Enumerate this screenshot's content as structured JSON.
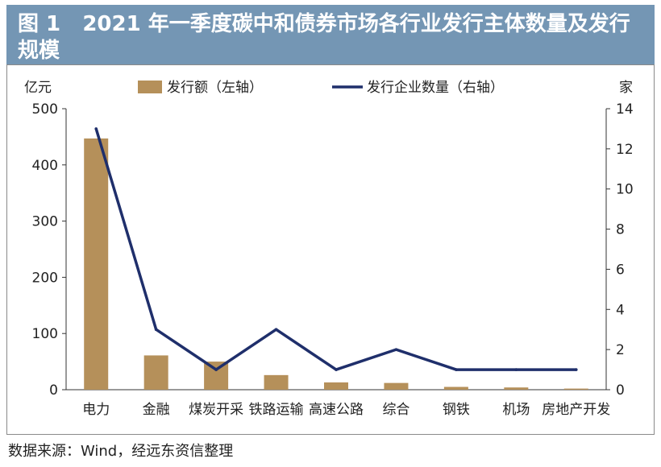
{
  "figure": {
    "number": "图 1",
    "title": "2021 年一季度碳中和债券市场各行业发行主体数量及发行规模"
  },
  "source": "数据来源：Wind，经远东资信整理",
  "colors": {
    "title_bg": "#7496b4",
    "bar": "#b5905a",
    "line": "#1f2f6b"
  },
  "chart_data": {
    "type": "bar",
    "categories": [
      "电力",
      "金融",
      "煤炭开采",
      "铁路运输",
      "高速公路",
      "综合",
      "钢铁",
      "机场",
      "房地产开发"
    ],
    "left_axis": {
      "unit": "亿元",
      "min": 0,
      "max": 500,
      "ticks": [
        0,
        100,
        200,
        300,
        400,
        500
      ]
    },
    "right_axis": {
      "unit": "家",
      "min": 0,
      "max": 14,
      "ticks": [
        0,
        2,
        4,
        6,
        8,
        10,
        12,
        14
      ]
    },
    "series": [
      {
        "name": "发行额（左轴）",
        "type": "bar",
        "axis": "left",
        "values": [
          447,
          61,
          50,
          26,
          13,
          12,
          5,
          4,
          2
        ]
      },
      {
        "name": "发行企业数量（右轴）",
        "type": "line",
        "axis": "right",
        "values": [
          13,
          3,
          1,
          3,
          1,
          2,
          1,
          1,
          1
        ]
      }
    ],
    "legend_position": "top",
    "grid": false
  }
}
